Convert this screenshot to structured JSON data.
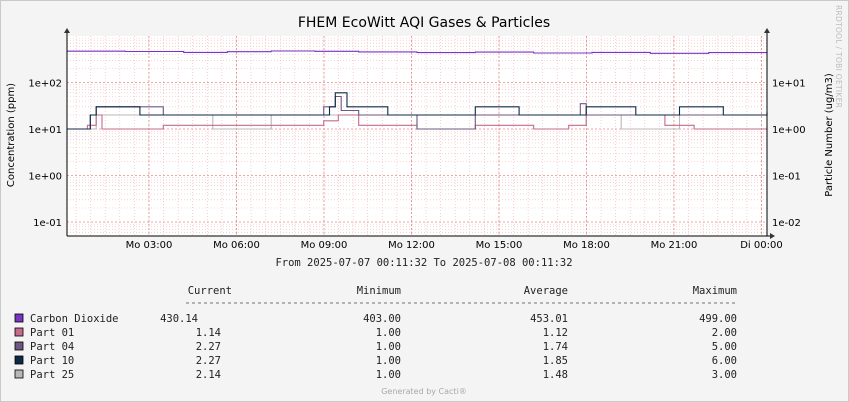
{
  "chart_data": {
    "type": "line",
    "title": "FHEM EcoWitt AQI Gases & Particles",
    "ylabel_left": "Concentration (ppm)",
    "ylabel_right": "Particle Number (ug/m3)",
    "yscale": "log",
    "ylim_left": [
      0.05,
      1000
    ],
    "ylim_right": [
      0.005,
      100
    ],
    "yticks_left": [
      "1e-01",
      "1e+00",
      "1e+01",
      "1e+02"
    ],
    "yticks_right": [
      "1e-02",
      "1e-01",
      "1e+00",
      "1e+01"
    ],
    "xticks": [
      "Mo 03:00",
      "Mo 06:00",
      "Mo 09:00",
      "Mo 12:00",
      "Mo 15:00",
      "Mo 18:00",
      "Mo 21:00",
      "Di 00:00"
    ],
    "range_text": "From 2025-07-07 00:11:32 To 2025-07-08 00:11:32",
    "grid": true,
    "watermark": "RRDTOOL / TOBI OETIKER",
    "footer": "Generated by Cacti®",
    "legend_headers": [
      "Current",
      "Minimum",
      "Average",
      "Maximum"
    ],
    "series": [
      {
        "name": "Carbon Dioxide",
        "color": "#7a34c3",
        "axis": "left",
        "current": "430.14",
        "minimum": "403.00",
        "average": "453.01",
        "maximum": "499.00",
        "x": [
          0,
          2,
          4,
          5.5,
          7,
          8.5,
          10,
          12,
          14,
          16,
          18,
          20,
          22,
          24
        ],
        "y": [
          470,
          465,
          445,
          460,
          475,
          468,
          455,
          440,
          450,
          430,
          445,
          425,
          440,
          430
        ]
      },
      {
        "name": "Part 01",
        "color": "#c56b8c",
        "axis": "right",
        "current": "1.14",
        "minimum": "1.00",
        "average": "1.12",
        "maximum": "2.00",
        "x": [
          0,
          0.7,
          1.0,
          1.2,
          3.3,
          5.3,
          7.8,
          8.8,
          9.3,
          10,
          12,
          14,
          16,
          17.2,
          17.8,
          20.5,
          21.5,
          24
        ],
        "y": [
          1,
          1.2,
          2,
          1,
          1.2,
          1.2,
          1.2,
          1.5,
          2,
          1.2,
          1,
          1.2,
          1,
          1.2,
          2,
          1.2,
          1,
          1.1
        ]
      },
      {
        "name": "Part 04",
        "color": "#6e5880",
        "axis": "right",
        "current": "2.27",
        "minimum": "1.00",
        "average": "1.74",
        "maximum": "5.00",
        "x": [
          0,
          0.8,
          1.0,
          3.3,
          5.3,
          8.8,
          9.2,
          9.4,
          10,
          12,
          14,
          17.6,
          17.8,
          21.5,
          24
        ],
        "y": [
          1,
          2,
          3,
          2,
          2,
          3,
          5,
          2.5,
          2,
          1,
          2,
          3.5,
          2,
          2,
          2.27
        ]
      },
      {
        "name": "Part 10",
        "color": "#0d2a48",
        "axis": "right",
        "current": "2.27",
        "minimum": "1.00",
        "average": "1.85",
        "maximum": "6.00",
        "x": [
          0,
          0.8,
          1.0,
          2.5,
          4.5,
          6,
          7.5,
          8.5,
          9.0,
          9.2,
          9.6,
          11,
          12.5,
          14,
          15.5,
          17.8,
          19.5,
          21,
          22.5,
          24
        ],
        "y": [
          1,
          2,
          3,
          2,
          2,
          2,
          2,
          2,
          3,
          6,
          3,
          2,
          2,
          3,
          2,
          3,
          2,
          3,
          2,
          2.27
        ]
      },
      {
        "name": "Part 25",
        "color": "#b8b8b8",
        "axis": "right",
        "current": "2.14",
        "minimum": "1.00",
        "average": "1.48",
        "maximum": "3.00",
        "x": [
          0,
          1,
          3,
          5,
          7,
          9,
          11,
          13,
          15,
          17,
          19,
          21,
          23,
          24
        ],
        "y": [
          1,
          2,
          2,
          1,
          2,
          2,
          2,
          2,
          2,
          2,
          1,
          2,
          2,
          2.14
        ]
      }
    ]
  }
}
